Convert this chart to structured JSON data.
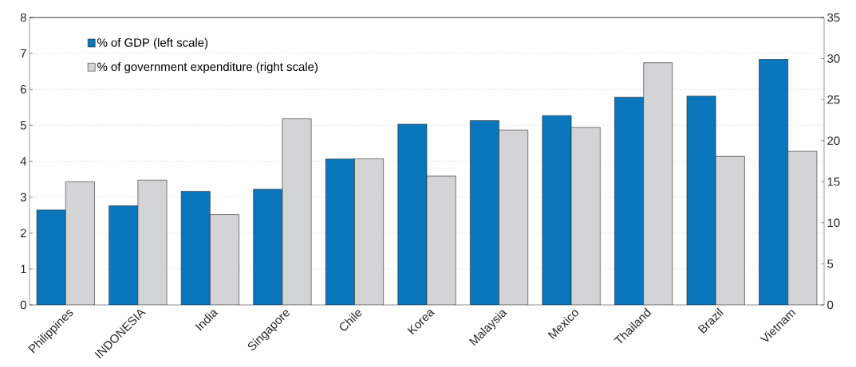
{
  "chart_data": {
    "type": "bar",
    "categories": [
      "Philippines",
      "INDONESIA",
      "India",
      "Singapore",
      "Chile",
      "Korea",
      "Malaysia",
      "Mexico",
      "Thailand",
      "Brazil",
      "Vietnam"
    ],
    "series": [
      {
        "name": "% of GDP (left scale)",
        "color": "#0a76bb",
        "axis": "y",
        "values": [
          2.64,
          2.76,
          3.16,
          3.22,
          4.06,
          5.03,
          5.13,
          5.27,
          5.78,
          5.81,
          6.84
        ]
      },
      {
        "name": "% of government expenditure (right scale)",
        "color": "#d3d4d6",
        "axis": "y2",
        "values": [
          15.0,
          15.2,
          11.0,
          22.7,
          17.8,
          15.7,
          21.3,
          21.6,
          29.5,
          18.1,
          18.7
        ]
      }
    ],
    "ylim": [
      0,
      8
    ],
    "yticks": [
      0,
      1,
      2,
      3,
      4,
      5,
      6,
      7,
      8
    ],
    "y2lim": [
      0,
      35
    ],
    "y2ticks": [
      0,
      5,
      10,
      15,
      20,
      25,
      30,
      35
    ],
    "grid": "y",
    "legend": "top left"
  }
}
